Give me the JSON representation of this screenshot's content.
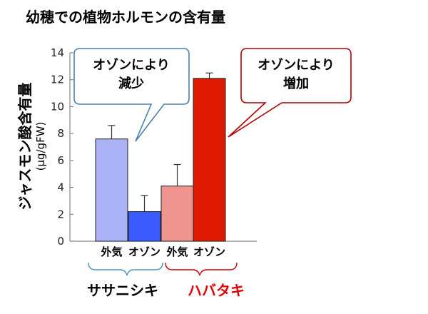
{
  "title": "幼穂での植物ホルモンの含有量",
  "chart_data": {
    "type": "bar",
    "ylabel": "ジャスモン酸含有量",
    "yunit": "(μg/gFW)",
    "ylim": [
      0,
      14
    ],
    "yticks": [
      "0",
      "2",
      "4",
      "6",
      "8",
      "10",
      "12",
      "14"
    ],
    "categories": [
      "外気",
      "オゾン",
      "外気",
      "オゾン"
    ],
    "values": [
      7.6,
      2.2,
      4.1,
      12.1
    ],
    "errors": [
      1.0,
      1.2,
      1.6,
      0.4
    ],
    "groups": [
      {
        "name": "ササニシキ",
        "color": "#000000",
        "bracket_color": "#4a90c8"
      },
      {
        "name": "ハバタキ",
        "color": "#e00000",
        "bracket_color": "#cc0000"
      }
    ],
    "colors": [
      "#aab2f5",
      "#3a5cff",
      "#ee9590",
      "#dd1a00"
    ],
    "annotations": [
      {
        "lines": [
          "オゾンにより",
          "減少"
        ],
        "border": "#4a7fb0"
      },
      {
        "lines": [
          "オゾンにより",
          "増加"
        ],
        "border": "#b00000"
      }
    ]
  }
}
